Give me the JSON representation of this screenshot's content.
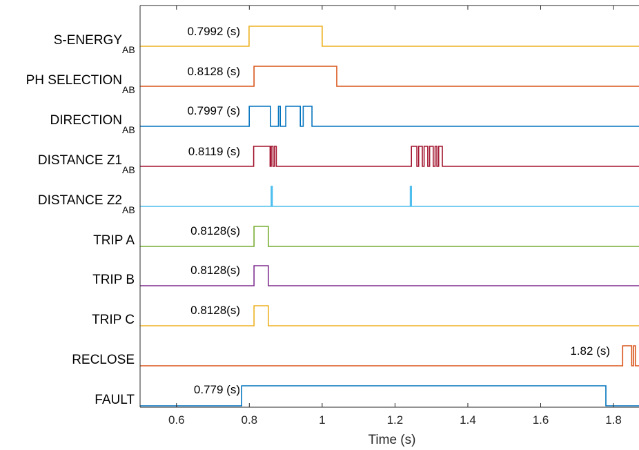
{
  "chart_data": {
    "type": "line",
    "xlabel": "Time (s)",
    "xlim": [
      0.5,
      1.87
    ],
    "xticks": [
      "0.6",
      "0.8",
      "1",
      "1.2",
      "1.4",
      "1.6",
      "1.8"
    ],
    "grid": false,
    "series": [
      {
        "name": "S-ENERGY",
        "sub": "AB",
        "color": "#EDB120",
        "annotation": "0.7992 (s)",
        "pulses": [
          [
            0.7992,
            1.0
          ]
        ]
      },
      {
        "name": "PH SELECTION",
        "sub": "AB",
        "color": "#D95319",
        "annotation": "0.8128 (s)",
        "pulses": [
          [
            0.8128,
            1.04
          ]
        ]
      },
      {
        "name": "DIRECTION",
        "sub": "AB",
        "color": "#0072BD",
        "annotation": "0.7997 (s)",
        "pulses": [
          [
            0.7997,
            0.858
          ],
          [
            0.88,
            0.885
          ],
          [
            0.9,
            0.94
          ],
          [
            0.948,
            0.972
          ]
        ]
      },
      {
        "name": "DISTANCE Z1",
        "sub": "AB",
        "color": "#A2142F",
        "annotation": "0.8119 (s)",
        "pulses": [
          [
            0.8119,
            0.857
          ],
          [
            0.86,
            0.865
          ],
          [
            0.869,
            0.874
          ],
          [
            1.245,
            1.26
          ],
          [
            1.265,
            1.275
          ],
          [
            1.28,
            1.29
          ],
          [
            1.295,
            1.305
          ],
          [
            1.31,
            1.315
          ],
          [
            1.32,
            1.33
          ]
        ]
      },
      {
        "name": "DISTANCE Z2",
        "sub": "AB",
        "color": "#4DBEEE",
        "annotation": "",
        "pulses": [
          [
            0.86,
            0.863
          ],
          [
            1.242,
            1.245
          ]
        ]
      },
      {
        "name": "TRIP A",
        "sub": "",
        "color": "#77AC30",
        "annotation": "0.8128(s)",
        "pulses": [
          [
            0.8128,
            0.852
          ]
        ]
      },
      {
        "name": "TRIP B",
        "sub": "",
        "color": "#7E2F8E",
        "annotation": "0.8128(s)",
        "pulses": [
          [
            0.8128,
            0.852
          ]
        ]
      },
      {
        "name": "TRIP C",
        "sub": "",
        "color": "#EDB120",
        "annotation": "0.8128(s)",
        "pulses": [
          [
            0.8128,
            0.852
          ]
        ]
      },
      {
        "name": "RECLOSE",
        "sub": "",
        "color": "#D95319",
        "annotation": "1.82 (s)",
        "pulses": [
          [
            1.825,
            1.85
          ],
          [
            1.855,
            1.86
          ]
        ]
      },
      {
        "name": "FAULT",
        "sub": "",
        "color": "#0072BD",
        "annotation": "0.779 (s)",
        "pulses": [
          [
            0.779,
            1.779
          ]
        ]
      }
    ]
  }
}
